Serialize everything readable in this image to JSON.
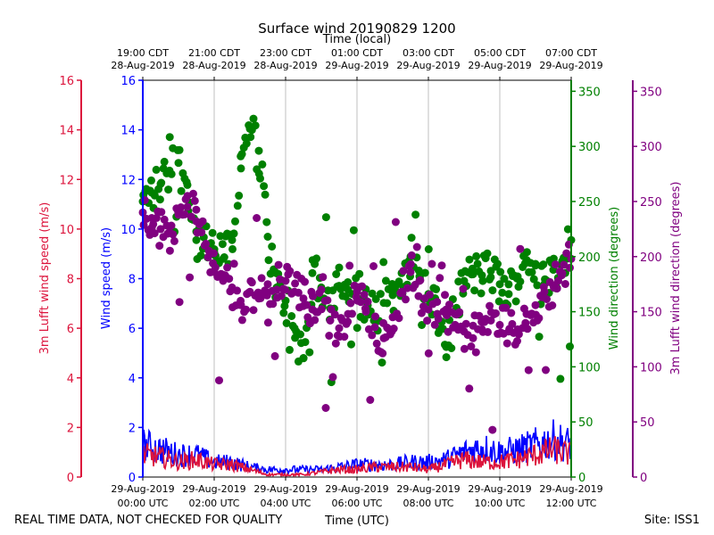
{
  "chart_data": {
    "type": "scatter",
    "title": "Surface wind 20190829 1200",
    "top_axis_label": "Time (local)",
    "bottom_axis_label": "Time (UTC)",
    "footer_left": "REAL TIME DATA, NOT CHECKED FOR QUALITY",
    "footer_right": "Site: ISS1",
    "x_range_hours": [
      0,
      12
    ],
    "bottom_ticks": [
      {
        "h": 0,
        "l1": "29-Aug-2019",
        "l2": "00:00 UTC"
      },
      {
        "h": 2,
        "l1": "29-Aug-2019",
        "l2": "02:00 UTC"
      },
      {
        "h": 4,
        "l1": "29-Aug-2019",
        "l2": "04:00 UTC"
      },
      {
        "h": 6,
        "l1": "29-Aug-2019",
        "l2": "06:00 UTC"
      },
      {
        "h": 8,
        "l1": "29-Aug-2019",
        "l2": "08:00 UTC"
      },
      {
        "h": 10,
        "l1": "29-Aug-2019",
        "l2": "10:00 UTC"
      },
      {
        "h": 12,
        "l1": "29-Aug-2019",
        "l2": "12:00 UTC"
      }
    ],
    "top_ticks": [
      {
        "h": 0,
        "l1": "19:00 CDT",
        "l2": "28-Aug-2019"
      },
      {
        "h": 2,
        "l1": "21:00 CDT",
        "l2": "28-Aug-2019"
      },
      {
        "h": 4,
        "l1": "23:00 CDT",
        "l2": "28-Aug-2019"
      },
      {
        "h": 6,
        "l1": "01:00 CDT",
        "l2": "29-Aug-2019"
      },
      {
        "h": 8,
        "l1": "03:00 CDT",
        "l2": "29-Aug-2019"
      },
      {
        "h": 10,
        "l1": "05:00 CDT",
        "l2": "29-Aug-2019"
      },
      {
        "h": 12,
        "l1": "07:00 CDT",
        "l2": "29-Aug-2019"
      }
    ],
    "axes": {
      "lufft_speed": {
        "label": "3m Lufft wind speed (m/s)",
        "color": "#dc143c",
        "ylim": [
          0,
          16
        ],
        "ticks": [
          0,
          2,
          4,
          6,
          8,
          10,
          12,
          14,
          16
        ]
      },
      "wind_speed": {
        "label": "Wind speed (m/s)",
        "color": "#0000ff",
        "ylim": [
          0,
          16
        ],
        "ticks": [
          0,
          2,
          4,
          6,
          8,
          10,
          12,
          14,
          16
        ]
      },
      "wind_direction": {
        "label": "Wind direction (degrees)",
        "color": "#008000",
        "ylim": [
          0,
          360
        ],
        "ticks": [
          0,
          50,
          100,
          150,
          200,
          250,
          300,
          350
        ]
      },
      "lufft_direction": {
        "label": "3m Lufft wind direction (degrees)",
        "color": "#800080",
        "ylim": [
          0,
          360
        ],
        "ticks": [
          0,
          50,
          100,
          150,
          200,
          250,
          300,
          350
        ]
      }
    },
    "series": [
      {
        "name": "Wind speed (m/s)",
        "kind": "line",
        "axis": "wind_speed",
        "x": [
          0,
          0.5,
          1,
          1.5,
          2,
          2.5,
          3,
          3.5,
          4,
          4.5,
          5,
          5.5,
          6,
          6.5,
          7,
          7.5,
          8,
          8.5,
          9,
          9.5,
          10,
          10.5,
          11,
          11.5,
          12
        ],
        "values": [
          1.3,
          1.1,
          0.9,
          0.9,
          0.6,
          0.6,
          0.4,
          0.3,
          0.3,
          0.3,
          0.3,
          0.4,
          0.5,
          0.5,
          0.5,
          0.6,
          0.6,
          0.7,
          1.0,
          1.2,
          1.0,
          1.1,
          1.3,
          1.5,
          1.3
        ]
      },
      {
        "name": "3m Lufft wind speed (m/s)",
        "kind": "line",
        "axis": "lufft_speed",
        "x": [
          0,
          0.5,
          1,
          1.5,
          2,
          2.5,
          3,
          3.5,
          4,
          4.5,
          5,
          5.5,
          6,
          6.5,
          7,
          7.5,
          8,
          8.5,
          9,
          9.5,
          10,
          10.5,
          11,
          11.5,
          12
        ],
        "values": [
          0.9,
          0.8,
          0.6,
          0.7,
          0.5,
          0.5,
          0.3,
          0.1,
          0.1,
          0.1,
          0.2,
          0.3,
          0.3,
          0.4,
          0.4,
          0.4,
          0.3,
          0.5,
          0.7,
          0.6,
          0.6,
          0.7,
          0.9,
          1.1,
          0.9
        ]
      },
      {
        "name": "Wind direction (degrees)",
        "kind": "scatter",
        "axis": "wind_direction",
        "x": [
          0,
          0.25,
          0.5,
          0.75,
          1,
          1.25,
          1.5,
          1.75,
          2,
          2.25,
          2.5,
          2.75,
          3,
          3.25,
          3.5,
          3.75,
          4,
          4.25,
          4.5,
          4.75,
          5,
          5.25,
          5.5,
          5.75,
          6,
          6.25,
          6.5,
          6.75,
          7,
          7.25,
          7.5,
          7.75,
          8,
          8.25,
          8.5,
          8.75,
          9,
          9.25,
          9.5,
          9.75,
          10,
          10.25,
          10.5,
          10.75,
          11,
          11.25,
          11.5,
          11.75,
          12
        ],
        "values": [
          250,
          258,
          266,
          278,
          285,
          265,
          215,
          208,
          204,
          198,
          215,
          280,
          316,
          296,
          218,
          172,
          160,
          135,
          108,
          185,
          172,
          153,
          190,
          170,
          168,
          160,
          143,
          158,
          165,
          185,
          200,
          182,
          166,
          148,
          118,
          150,
          178,
          184,
          183,
          187,
          175,
          166,
          182,
          197,
          192,
          175,
          188,
          196,
          215
        ],
        "spread": 20
      },
      {
        "name": "3m Lufft wind direction (degrees)",
        "kind": "scatter",
        "axis": "lufft_direction",
        "x": [
          0,
          0.25,
          0.5,
          0.75,
          1,
          1.25,
          1.5,
          1.75,
          2,
          2.25,
          2.5,
          2.75,
          3,
          3.25,
          3.5,
          3.75,
          4,
          4.25,
          4.5,
          4.75,
          5,
          5.25,
          5.5,
          5.75,
          6,
          6.25,
          6.5,
          6.75,
          7,
          7.25,
          7.5,
          7.75,
          8,
          8.25,
          8.5,
          8.75,
          9,
          9.25,
          9.5,
          9.75,
          10,
          10.25,
          10.5,
          10.75,
          11,
          11.25,
          11.5,
          11.75,
          12
        ],
        "values": [
          240,
          235,
          225,
          222,
          238,
          255,
          232,
          210,
          186,
          178,
          172,
          156,
          168,
          162,
          175,
          170,
          178,
          168,
          162,
          152,
          170,
          142,
          135,
          148,
          168,
          150,
          136,
          126,
          145,
          168,
          186,
          178,
          152,
          148,
          152,
          138,
          132,
          126,
          134,
          142,
          138,
          132,
          134,
          148,
          156,
          168,
          174,
          185,
          198
        ],
        "spread": 18
      }
    ]
  }
}
